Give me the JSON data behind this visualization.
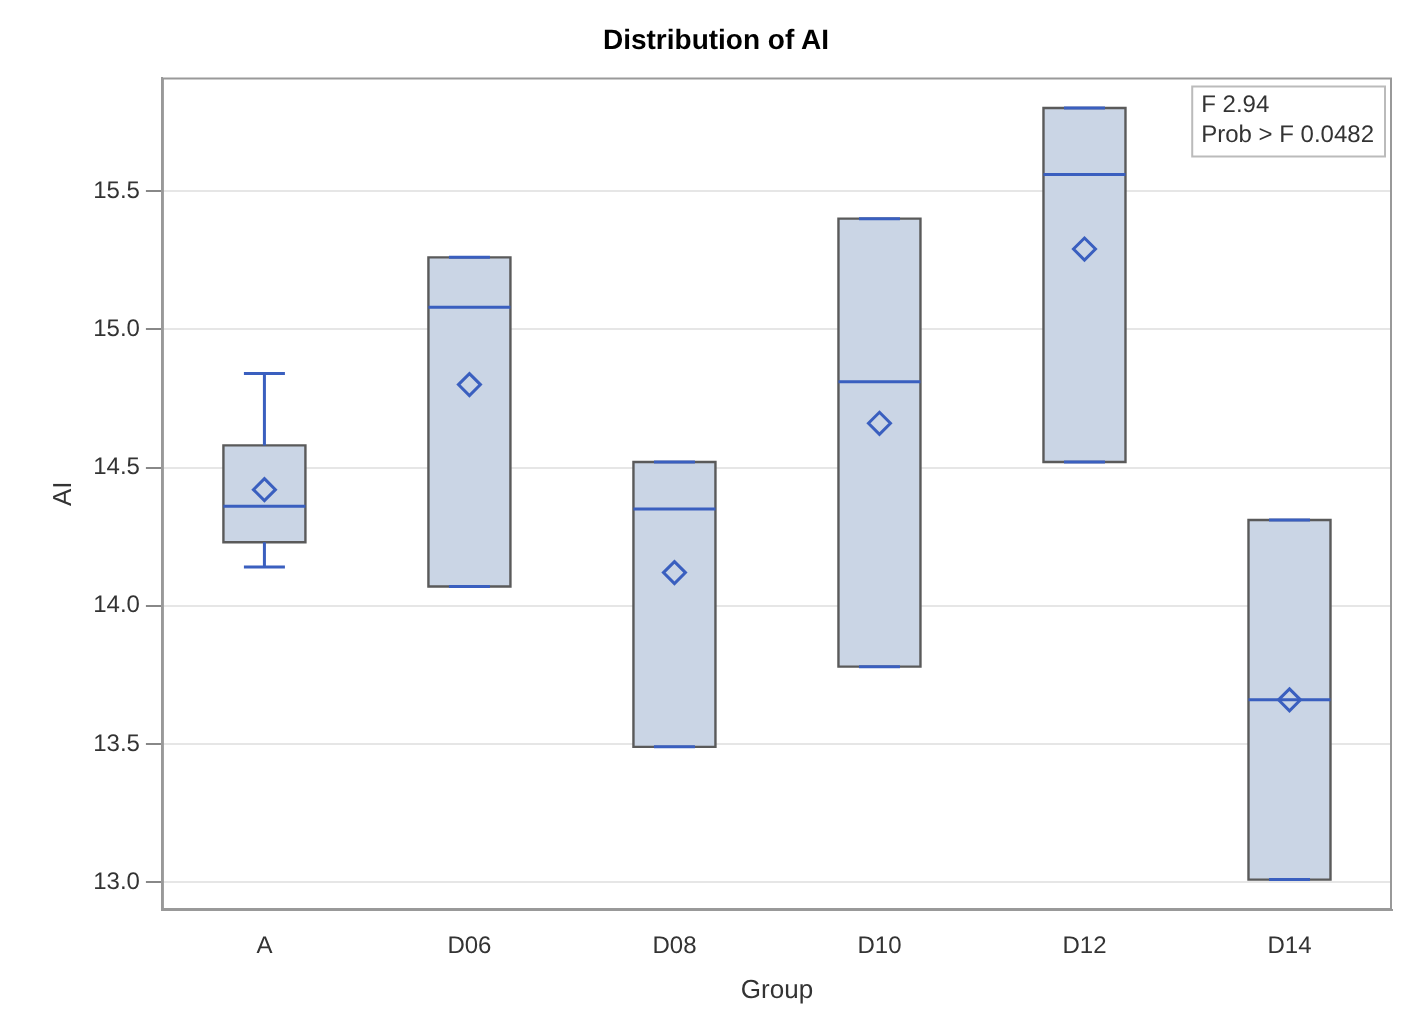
{
  "chart_data": {
    "type": "box",
    "title": "Distribution of AI",
    "xlabel": "Group",
    "ylabel": "AI",
    "categories": [
      "A",
      "D06",
      "D08",
      "D10",
      "D12",
      "D14"
    ],
    "series": [
      {
        "color": "#cad5e5",
        "boxes": [
          {
            "low": 14.14,
            "q1": 14.23,
            "median": 14.36,
            "q3": 14.58,
            "high": 14.84,
            "mean": 14.42
          },
          {
            "low": 14.07,
            "q1": 14.07,
            "median": 15.08,
            "q3": 15.26,
            "high": 15.26,
            "mean": 14.8
          },
          {
            "low": 13.49,
            "q1": 13.49,
            "median": 14.35,
            "q3": 14.52,
            "high": 14.52,
            "mean": 14.12
          },
          {
            "low": 13.78,
            "q1": 13.78,
            "median": 14.81,
            "q3": 15.4,
            "high": 15.4,
            "mean": 14.66
          },
          {
            "low": 14.52,
            "q1": 14.52,
            "median": 15.56,
            "q3": 15.8,
            "high": 15.8,
            "mean": 15.29
          },
          {
            "low": 13.01,
            "q1": 13.01,
            "median": 13.66,
            "q3": 14.31,
            "high": 14.31,
            "mean": 13.66
          }
        ]
      }
    ],
    "ylim": [
      12.9,
      15.91
    ],
    "yticks": [
      {
        "value": 13,
        "label": "13.0"
      },
      {
        "value": 13.5,
        "label": "13.5"
      },
      {
        "value": 14,
        "label": "14.0"
      },
      {
        "value": 14.5,
        "label": "14.5"
      },
      {
        "value": 15,
        "label": "15.0"
      },
      {
        "value": 15.5,
        "label": "15.5"
      }
    ],
    "grid": "y",
    "legend": false,
    "annotations": [
      "F 2.94",
      "Prob > F 0.0482"
    ]
  }
}
